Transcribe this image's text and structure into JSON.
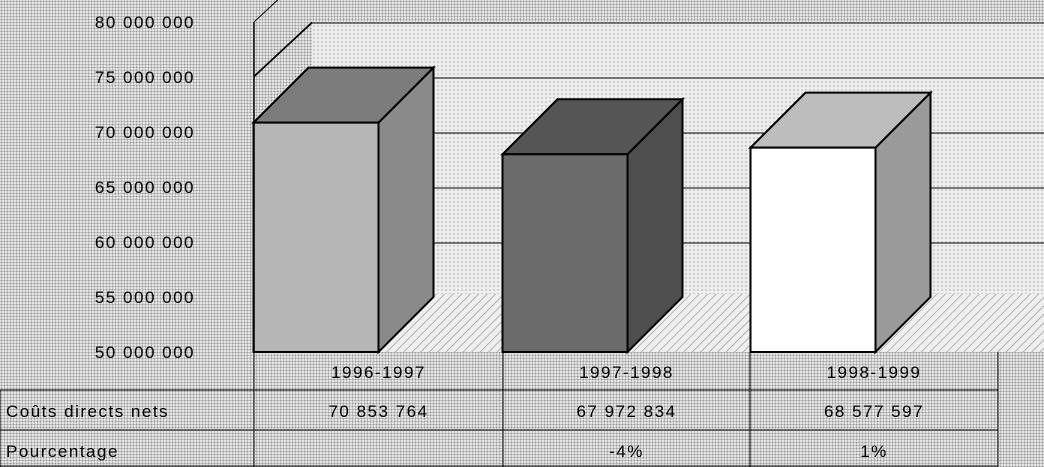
{
  "chart_data": {
    "type": "bar",
    "categories": [
      "1996-1997",
      "1997-1998",
      "1998-1999"
    ],
    "series": [
      {
        "name": "Coûts directs nets",
        "values": [
          70853764,
          67972834,
          68577597
        ]
      }
    ],
    "ylim": [
      50000000,
      80000000
    ],
    "yticks": [
      50000000,
      55000000,
      60000000,
      65000000,
      70000000,
      75000000,
      80000000
    ],
    "ytick_labels": [
      "50 000 000",
      "55 000 000",
      "60 000 000",
      "65 000 000",
      "70 000 000",
      "75 000 000",
      "80 000 000"
    ],
    "grid": true,
    "table": {
      "rows": [
        {
          "label": "Coûts directs nets",
          "cells": [
            "70 853 764",
            "67 972 834",
            "68 577 597"
          ]
        },
        {
          "label": "Pourcentage",
          "cells": [
            "",
            "-4%",
            "1%"
          ]
        }
      ]
    },
    "bar_colors": [
      {
        "front": "#b6b6b6",
        "side": "#8a8a8a",
        "top": "#7c7c7c"
      },
      {
        "front": "#6c6c6c",
        "side": "#4e4e4e",
        "top": "#555555"
      },
      {
        "front": "#ffffff",
        "side": "#9a9a9a",
        "top": "#bdbdbd"
      }
    ]
  }
}
